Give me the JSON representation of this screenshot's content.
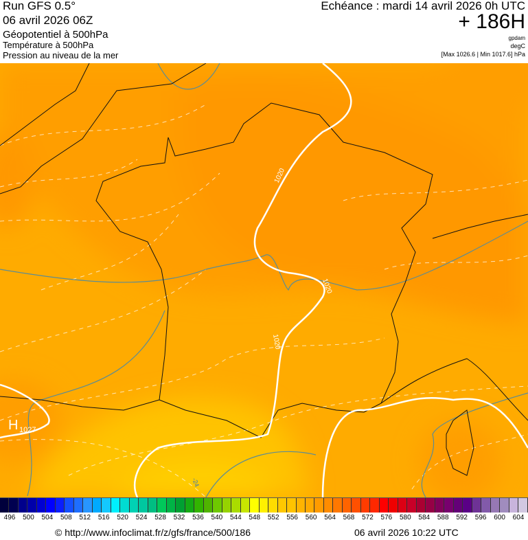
{
  "header": {
    "run": "Run GFS 0.5°",
    "run_date": "06 avril 2026 06Z",
    "field1": "Géopotentiel à 500hPa",
    "field2": "Température à 500hPa",
    "field3": "Pression au niveau de la mer",
    "echeance": "Echéance : mardi 14 avril 2026 0h UTC",
    "forecast_hour": "+ 186H",
    "unit1": "gpdam",
    "unit2": "degC",
    "pressure_range": "[Max 1026.6 | Min 1017.6] hPa"
  },
  "map": {
    "high_label": "H",
    "high_value": "1027",
    "isobar_labels": [
      "1020",
      "1020",
      "1020"
    ],
    "temp_label": "-24"
  },
  "colorbar": {
    "labels": [
      "496",
      "500",
      "504",
      "508",
      "512",
      "516",
      "520",
      "524",
      "528",
      "532",
      "536",
      "540",
      "544",
      "548",
      "552",
      "556",
      "560",
      "564",
      "568",
      "572",
      "576",
      "580",
      "584",
      "588",
      "592",
      "596",
      "600",
      "604"
    ],
    "colors": [
      "#00003c",
      "#000050",
      "#00008c",
      "#0000aa",
      "#0000d2",
      "#0000ff",
      "#0a1eff",
      "#1450ff",
      "#1e6eff",
      "#2896ff",
      "#00aaff",
      "#14c8ff",
      "#00f0ff",
      "#00dcd2",
      "#00d2b4",
      "#00c8a0",
      "#00be82",
      "#00c85a",
      "#00b446",
      "#00a032",
      "#14aa14",
      "#32b400",
      "#50b400",
      "#6ec800",
      "#96d200",
      "#aadc00",
      "#c8e600",
      "#ffff00",
      "#fff000",
      "#ffdc00",
      "#ffc800",
      "#ffc300",
      "#ffb400",
      "#ffaa00",
      "#ff9b00",
      "#ff8c00",
      "#ff7800",
      "#ff6400",
      "#ff5000",
      "#ff3c00",
      "#ff2800",
      "#ff0000",
      "#f00000",
      "#dc0014",
      "#c80028",
      "#aa0032",
      "#960046",
      "#82005a",
      "#78006e",
      "#640078",
      "#5a0087",
      "#6e3296",
      "#825aaa",
      "#9678b4",
      "#a08cbe",
      "#c8b4dc",
      "#d2c8e1"
    ]
  },
  "footer": {
    "url": "© http://www.infoclimat.fr/z/gfs/france/500/186",
    "timestamp": "06 avril 2026 10:22 UTC"
  }
}
